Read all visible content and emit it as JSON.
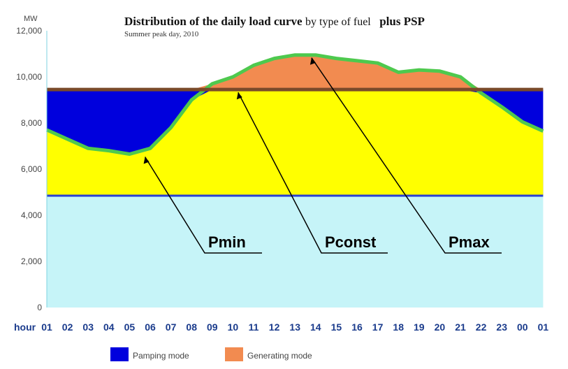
{
  "chart_data": {
    "type": "area",
    "title_main": "Distribution of the daily load curve",
    "title_rest": " by type of fuel",
    "title_psp": "plus PSP",
    "subtitle": "Summer peak day, 2010",
    "y_unit": "MW",
    "ylim": [
      0,
      12000
    ],
    "y_ticks": [
      "0",
      "2,000",
      "4,000",
      "6,000",
      "8,000",
      "10,000",
      "12,000"
    ],
    "y_tick_values": [
      0,
      2000,
      4000,
      6000,
      8000,
      10000,
      12000
    ],
    "x_label": "hour",
    "categories": [
      "01",
      "02",
      "03",
      "04",
      "05",
      "06",
      "07",
      "08",
      "09",
      "10",
      "11",
      "12",
      "13",
      "14",
      "15",
      "16",
      "17",
      "18",
      "19",
      "20",
      "21",
      "22",
      "23",
      "00",
      "01"
    ],
    "base_load": 4850,
    "psp_constant": 9450,
    "load_curve": [
      7700,
      7300,
      6900,
      6800,
      6650,
      6900,
      7800,
      9000,
      9700,
      10000,
      10500,
      10800,
      10950,
      10950,
      10800,
      10700,
      10600,
      10200,
      10300,
      10250,
      10000,
      9300,
      8700,
      8050,
      7650
    ],
    "colors": {
      "base": "#c6f4f8",
      "middle": "#ffff00",
      "pumping": "#0000dd",
      "generating": "#f28b50",
      "curve": "#4ec94e",
      "psp_line": "#7a4a2a",
      "base_line": "#2a3fd0"
    },
    "annotations": [
      {
        "label": "Pmin",
        "x_hour_index": 4.75,
        "value": 6650
      },
      {
        "label": "Pconst",
        "x_hour_index": 9.25,
        "value": 9450
      },
      {
        "label": "Pmax",
        "x_hour_index": 12.8,
        "value": 10950
      }
    ],
    "legend": [
      {
        "label": "Pamping mode",
        "color": "#0000dd"
      },
      {
        "label": "Generating mode",
        "color": "#f28b50"
      }
    ]
  }
}
